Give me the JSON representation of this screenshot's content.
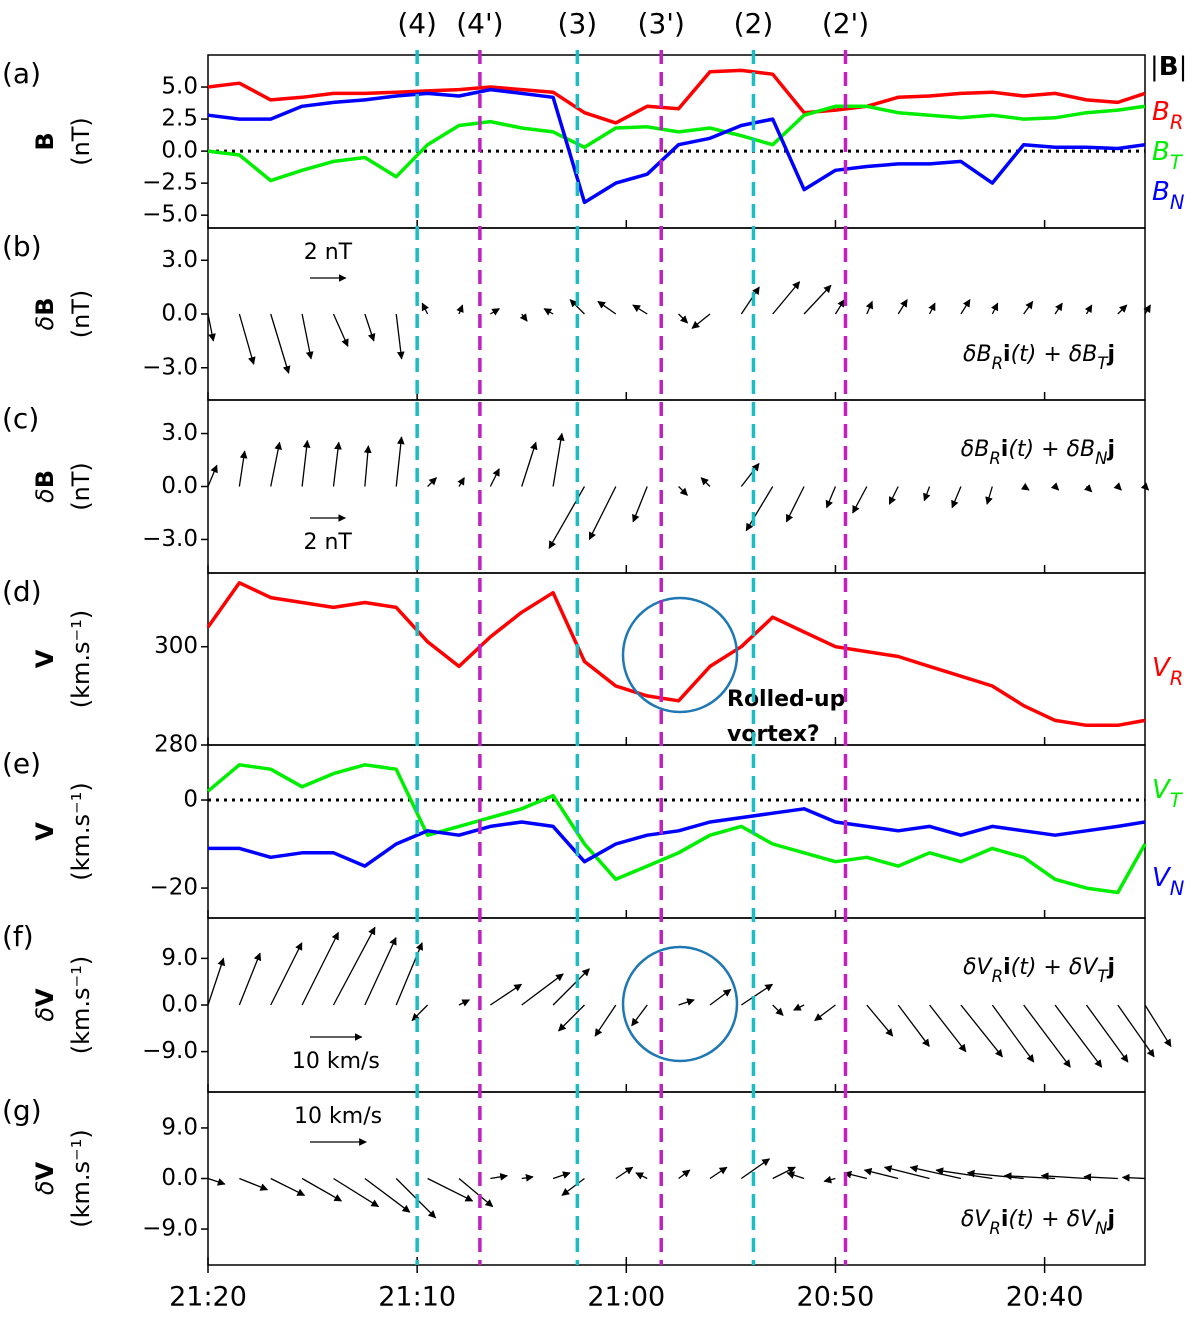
{
  "time_axis": {
    "xlim": [
      80,
      35.2
    ],
    "xticks": [
      {
        "value": 80,
        "label": "21:20"
      },
      {
        "value": 70,
        "label": "21:10"
      },
      {
        "value": 60,
        "label": "21:00"
      },
      {
        "value": 50,
        "label": "20:50"
      },
      {
        "value": 40,
        "label": "20:40"
      }
    ]
  },
  "markers": [
    {
      "label": "(4)",
      "x": 70,
      "color": "#1cbcc4"
    },
    {
      "label": "(4')",
      "x": 67,
      "color": "#bf22bf"
    },
    {
      "label": "(3)",
      "x": 62.34,
      "color": "#1cbcc4"
    },
    {
      "label": "(3')",
      "x": 58.33,
      "color": "#bf22bf"
    },
    {
      "label": "(2)",
      "x": 53.92,
      "color": "#1cbcc4"
    },
    {
      "label": "(2')",
      "x": 49.52,
      "color": "#bf22bf"
    }
  ],
  "chart_data": [
    {
      "type": "line",
      "label": "(a)",
      "ylabel": [
        {
          "t": "B",
          "bold": true
        }
      ],
      "yunit": "(nT)",
      "ylim": [
        -6,
        7.5
      ],
      "yticks": [
        {
          "value": -5,
          "label": "−5.0"
        },
        {
          "value": -2.5,
          "label": "−2.5"
        },
        {
          "value": 0,
          "label": "0.0"
        },
        {
          "value": 2.5,
          "label": "2.5"
        },
        {
          "value": 5,
          "label": "5.0"
        }
      ],
      "zero_line": true,
      "extra_legend": [
        {
          "t": "|"
        },
        {
          "t": "B",
          "bold": true
        },
        {
          "t": "|"
        }
      ],
      "x": [
        80,
        78.5,
        77,
        75.5,
        74,
        72.5,
        71,
        69.5,
        68,
        66.5,
        65,
        63.5,
        62,
        60.5,
        59,
        57.5,
        56,
        54.5,
        53,
        51.5,
        50,
        48.5,
        47,
        45.5,
        44,
        42.5,
        41,
        39.5,
        38,
        36.5,
        35.2
      ],
      "series": [
        {
          "name": [
            {
              "t": "B",
              "italic": true
            },
            {
              "t": "R",
              "sub": true,
              "italic": true
            }
          ],
          "color": "#ff0000",
          "values": [
            5.0,
            5.3,
            4.0,
            4.2,
            4.5,
            4.5,
            4.6,
            4.7,
            4.8,
            5.0,
            4.8,
            4.6,
            3.0,
            2.2,
            3.5,
            3.3,
            6.2,
            6.3,
            6.0,
            3.0,
            3.2,
            3.5,
            4.2,
            4.3,
            4.5,
            4.6,
            4.3,
            4.5,
            4.0,
            3.8,
            4.5
          ]
        },
        {
          "name": [
            {
              "t": "B",
              "italic": true
            },
            {
              "t": "T",
              "sub": true,
              "italic": true
            }
          ],
          "color": "#00ee00",
          "values": [
            0.0,
            -0.3,
            -2.3,
            -1.5,
            -0.8,
            -0.5,
            -2.0,
            0.5,
            2.0,
            2.3,
            1.8,
            1.5,
            0.3,
            1.8,
            1.9,
            1.5,
            1.8,
            1.2,
            0.5,
            2.8,
            3.5,
            3.5,
            3.0,
            2.8,
            2.6,
            2.8,
            2.5,
            2.6,
            3.0,
            3.2,
            3.5
          ]
        },
        {
          "name": [
            {
              "t": "B",
              "italic": true
            },
            {
              "t": "N",
              "sub": true,
              "italic": true
            }
          ],
          "color": "#0000ff",
          "values": [
            2.8,
            2.5,
            2.5,
            3.5,
            3.8,
            4.0,
            4.3,
            4.5,
            4.3,
            4.8,
            4.5,
            4.2,
            -4.0,
            -2.5,
            -1.8,
            0.5,
            1.0,
            2.0,
            2.5,
            -3.0,
            -1.5,
            -1.2,
            -1.0,
            -1.0,
            -0.8,
            -2.5,
            0.5,
            0.3,
            0.3,
            0.2,
            0.5
          ]
        }
      ]
    },
    {
      "type": "quiver",
      "label": "(b)",
      "ylabel": [
        {
          "t": "δ",
          "italic": true
        },
        {
          "t": "B",
          "bold": true
        }
      ],
      "yunit": "(nT)",
      "ylim": [
        -4.8,
        4.8
      ],
      "yticks": [
        {
          "value": 3,
          "label": "3.0"
        },
        {
          "value": 0,
          "label": "0.0"
        },
        {
          "value": -3,
          "label": "−3.0"
        }
      ],
      "key": {
        "value": 2,
        "label": "2 nT"
      },
      "key_side": "top",
      "formula_corner": "lower right",
      "formula": [
        {
          "t": "δB",
          "italic": true
        },
        {
          "t": "R",
          "sub": true,
          "italic": true
        },
        {
          "t": "i",
          "bold": true
        },
        {
          "t": "(t) + δB",
          "italic": true
        },
        {
          "t": "T",
          "sub": true,
          "italic": true
        },
        {
          "t": "j",
          "bold": true
        }
      ],
      "x": [
        80,
        78.5,
        77,
        75.5,
        74,
        72.5,
        71,
        69.5,
        68,
        66.5,
        65,
        63.5,
        62,
        60.5,
        59,
        57.5,
        56,
        54.5,
        53,
        51.5,
        50,
        48.5,
        47,
        45.5,
        44,
        42.5,
        41,
        39.5,
        38,
        36.5,
        35.2
      ],
      "u": [
        0.3,
        0.8,
        1.0,
        0.5,
        0.8,
        0.5,
        0.3,
        -0.3,
        0.2,
        0.5,
        0.3,
        -0.5,
        -0.8,
        -1.0,
        -0.8,
        0.5,
        -1.0,
        1.0,
        1.5,
        1.5,
        0.5,
        0.3,
        0.5,
        0.3,
        0.5,
        0.3,
        0.5,
        0.4,
        0.3,
        0.5,
        0.3
      ],
      "v": [
        -1.5,
        -2.8,
        -3.3,
        -2.5,
        -1.8,
        -1.5,
        -2.5,
        0.6,
        0.5,
        0.3,
        -0.4,
        0.3,
        0.8,
        0.7,
        0.5,
        -0.5,
        -0.8,
        1.5,
        1.8,
        1.6,
        0.8,
        0.7,
        0.8,
        0.6,
        0.8,
        0.6,
        0.7,
        0.6,
        0.5,
        0.5,
        0.5
      ]
    },
    {
      "type": "quiver",
      "label": "(c)",
      "ylabel": [
        {
          "t": "δ",
          "italic": true
        },
        {
          "t": "B",
          "bold": true
        }
      ],
      "yunit": "(nT)",
      "ylim": [
        -4.9,
        4.9
      ],
      "yticks": [
        {
          "value": 3,
          "label": "3.0"
        },
        {
          "value": 0,
          "label": "0.0"
        },
        {
          "value": -3,
          "label": "−3.0"
        }
      ],
      "key": {
        "value": 2,
        "label": "2 nT"
      },
      "key_side": "bottom",
      "formula_corner": "upper right",
      "formula": [
        {
          "t": "δB",
          "italic": true
        },
        {
          "t": "R",
          "sub": true,
          "italic": true
        },
        {
          "t": "i",
          "bold": true
        },
        {
          "t": "(t) + δB",
          "italic": true
        },
        {
          "t": "N",
          "sub": true,
          "italic": true
        },
        {
          "t": "j",
          "bold": true
        }
      ],
      "x": [
        80,
        78.5,
        77,
        75.5,
        74,
        72.5,
        71,
        69.5,
        68,
        66.5,
        65,
        63.5,
        62,
        60.5,
        59,
        57.5,
        56,
        54.5,
        53,
        51.5,
        50,
        48.5,
        47,
        45.5,
        44,
        42.5,
        41,
        39.5,
        38,
        36.5,
        35.2
      ],
      "u": [
        0.5,
        0.3,
        0.5,
        0.3,
        0.3,
        0.2,
        0.3,
        0.5,
        0.3,
        0.5,
        0.8,
        0.5,
        -2.0,
        -1.5,
        -0.8,
        0.5,
        -0.5,
        1.0,
        -1.5,
        -1.0,
        -0.5,
        -0.8,
        -0.5,
        -0.3,
        -0.5,
        -0.3,
        0.3,
        0.2,
        0.3,
        0.2,
        0.2
      ],
      "v": [
        1.2,
        2.0,
        2.5,
        2.6,
        2.5,
        2.3,
        2.8,
        0.5,
        0.5,
        1.0,
        2.5,
        3.0,
        -3.5,
        -3.0,
        -2.0,
        -0.5,
        0.5,
        1.3,
        -2.5,
        -2.0,
        -1.2,
        -1.5,
        -1.0,
        -0.8,
        -1.2,
        -1.0,
        -0.2,
        -0.2,
        -0.3,
        -0.2,
        -0.2
      ]
    },
    {
      "type": "line",
      "label": "(d)",
      "ylabel": [
        {
          "t": "V",
          "bold": true
        }
      ],
      "yunit": "(km.s⁻¹)",
      "ylim": [
        280,
        315
      ],
      "yticks": [
        280,
        300
      ],
      "annotation": [
        "Rolled-up",
        "vortex?"
      ],
      "x": [
        80,
        78.5,
        77,
        75.5,
        74,
        72.5,
        71,
        69.5,
        68,
        66.5,
        65,
        63.5,
        62,
        60.5,
        59,
        57.5,
        56,
        54.5,
        53,
        51.5,
        50,
        48.5,
        47,
        45.5,
        44,
        42.5,
        41,
        39.5,
        38,
        36.5,
        35.2
      ],
      "series": [
        {
          "name": [
            {
              "t": "V",
              "italic": true
            },
            {
              "t": "R",
              "sub": true,
              "italic": true
            }
          ],
          "color": "#ff0000",
          "values": [
            304,
            313,
            310,
            309,
            308,
            309,
            308,
            301,
            296,
            302,
            307,
            311,
            297,
            292,
            290,
            289,
            296,
            300,
            306,
            303,
            300,
            299,
            298,
            296,
            294,
            292,
            288,
            285,
            284,
            284,
            285
          ]
        }
      ]
    },
    {
      "type": "line",
      "label": "(e)",
      "ylabel": [
        {
          "t": "V",
          "bold": true
        }
      ],
      "yunit": "(km.s⁻¹)",
      "ylim": [
        -26.8,
        12.5
      ],
      "yticks": [
        0,
        {
          "value": -20,
          "label": "−20"
        }
      ],
      "zero_line": true,
      "x": [
        80,
        78.5,
        77,
        75.5,
        74,
        72.5,
        71,
        69.5,
        68,
        66.5,
        65,
        63.5,
        62,
        60.5,
        59,
        57.5,
        56,
        54.5,
        53,
        51.5,
        50,
        48.5,
        47,
        45.5,
        44,
        42.5,
        41,
        39.5,
        38,
        36.5,
        35.2
      ],
      "series": [
        {
          "name": [
            {
              "t": "V",
              "italic": true
            },
            {
              "t": "T",
              "sub": true,
              "italic": true
            }
          ],
          "color": "#00ee00",
          "values": [
            2,
            8,
            7,
            3,
            6,
            8,
            7,
            -8,
            -6,
            -4,
            -2,
            1,
            -10,
            -18,
            -15,
            -12,
            -8,
            -6,
            -10,
            -12,
            -14,
            -13,
            -15,
            -12,
            -14,
            -11,
            -13,
            -18,
            -20,
            -21,
            -10
          ]
        },
        {
          "name": [
            {
              "t": "V",
              "italic": true
            },
            {
              "t": "N",
              "sub": true,
              "italic": true
            }
          ],
          "color": "#0000ff",
          "values": [
            -11,
            -11,
            -13,
            -12,
            -12,
            -15,
            -10,
            -7,
            -8,
            -6,
            -5,
            -6,
            -14,
            -10,
            -8,
            -7,
            -5,
            -4,
            -3,
            -2,
            -5,
            -6,
            -7,
            -6,
            -8,
            -6,
            -7,
            -8,
            -7,
            -6,
            -5
          ]
        }
      ]
    },
    {
      "type": "quiver",
      "label": "(f)",
      "ylabel": [
        {
          "t": "δ",
          "italic": true
        },
        {
          "t": "V",
          "bold": true
        }
      ],
      "yunit": "(km.s⁻¹)",
      "ylim": [
        -16.8,
        16.8
      ],
      "yticks": [
        {
          "value": 9,
          "label": "9.0"
        },
        {
          "value": 0,
          "label": "0.0"
        },
        {
          "value": -9,
          "label": "−9.0"
        }
      ],
      "key": {
        "value": 10,
        "label": "10 km/s"
      },
      "key_side": "bottom",
      "formula_corner": "upper right",
      "circle": true,
      "formula": [
        {
          "t": "δV",
          "italic": true
        },
        {
          "t": "R",
          "sub": true,
          "italic": true
        },
        {
          "t": "i",
          "bold": true
        },
        {
          "t": "(t) + δV",
          "italic": true
        },
        {
          "t": "T",
          "sub": true,
          "italic": true
        },
        {
          "t": "j",
          "bold": true
        }
      ],
      "x": [
        80,
        78.5,
        77,
        75.5,
        74,
        72.5,
        71,
        69.5,
        68,
        66.5,
        65,
        63.5,
        62,
        60.5,
        59,
        57.5,
        56,
        54.5,
        53,
        51.5,
        50,
        48.5,
        47,
        45.5,
        44,
        42.5,
        41,
        39.5,
        38,
        36.5,
        35.2
      ],
      "u": [
        3,
        4,
        6,
        7,
        8,
        6,
        5,
        -3,
        2,
        6,
        8,
        7,
        -5,
        -4,
        -3,
        3,
        4,
        6,
        2,
        -2,
        -4,
        5,
        6,
        7,
        8,
        8,
        9,
        9,
        8,
        7,
        5
      ],
      "v": [
        9,
        10,
        12,
        14,
        15,
        13,
        12,
        -3,
        1,
        4,
        6,
        7,
        -5,
        -6,
        -4,
        1,
        3,
        4,
        -2,
        -1,
        -3,
        -6,
        -8,
        -9,
        -10,
        -11,
        -12,
        -12,
        -11,
        -10,
        -8
      ]
    },
    {
      "type": "quiver",
      "label": "(g)",
      "ylabel": [
        {
          "t": "δ",
          "italic": true
        },
        {
          "t": "V",
          "bold": true
        }
      ],
      "yunit": "(km.s⁻¹)",
      "ylim": [
        -15.4,
        15.4
      ],
      "yticks": [
        {
          "value": 9,
          "label": "9.0"
        },
        {
          "value": 0,
          "label": "0.0"
        },
        {
          "value": -9,
          "label": "−9.0"
        }
      ],
      "key": {
        "value": 10,
        "label": "10 km/s"
      },
      "key_side": "top",
      "formula_corner": "lower right",
      "formula": [
        {
          "t": "δV",
          "italic": true
        },
        {
          "t": "R",
          "sub": true,
          "italic": true
        },
        {
          "t": "i",
          "bold": true
        },
        {
          "t": "(t) + δV",
          "italic": true
        },
        {
          "t": "N",
          "sub": true,
          "italic": true
        },
        {
          "t": "j",
          "bold": true
        }
      ],
      "x": [
        80,
        78.5,
        77,
        75.5,
        74,
        72.5,
        71,
        69.5,
        68,
        66.5,
        65,
        63.5,
        62,
        60.5,
        59,
        57.5,
        56,
        54.5,
        53,
        51.5,
        50,
        48.5,
        47,
        45.5,
        44,
        42.5,
        41,
        39.5,
        38,
        36.5,
        35.2
      ],
      "u": [
        3,
        5,
        6,
        7,
        8,
        8,
        7,
        8,
        6,
        3,
        2,
        3,
        -4,
        3,
        -2,
        2,
        3,
        5,
        4,
        -3,
        -2,
        -4,
        -6,
        -8,
        -9,
        -10,
        -10,
        -9,
        -8,
        -6,
        -4
      ],
      "v": [
        -1,
        -2,
        -3,
        -4,
        -5,
        -6,
        -7,
        -4,
        -5,
        0.5,
        0.3,
        1,
        -3,
        2,
        1,
        1.5,
        2,
        3.5,
        2,
        1,
        -0.5,
        1,
        1.5,
        2,
        2,
        1.5,
        1,
        0.5,
        0.5,
        0.3,
        0.2
      ]
    }
  ]
}
